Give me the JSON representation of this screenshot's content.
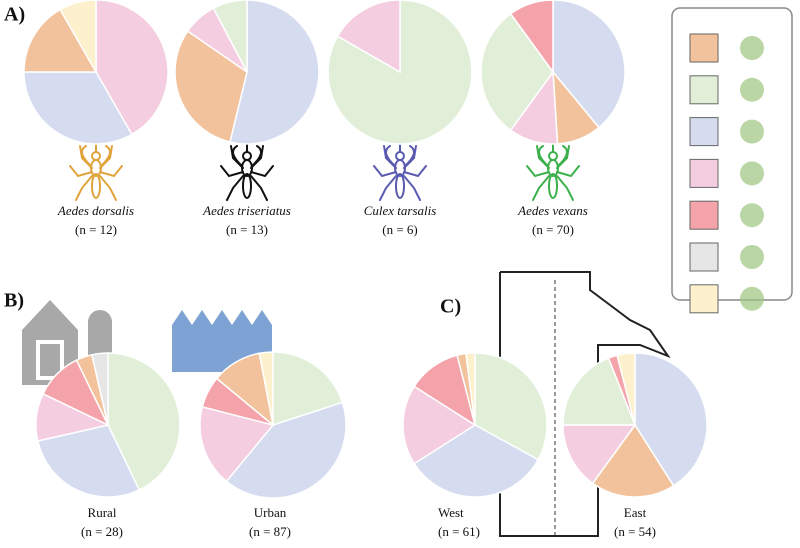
{
  "panel_labels": [
    "A)",
    "B)",
    "C)"
  ],
  "legend": {
    "colors": [
      "#f2c29c",
      "#e2efd8",
      "#d6dcf0",
      "#f4cde0",
      "#f4a3aa",
      "#e6e6e6",
      "#fdf0cc"
    ]
  },
  "chart_data": [
    {
      "type": "pie",
      "title": "Aedes dorsalis",
      "subtitle": "(n = 12)",
      "values": [
        41.7,
        33.3,
        16.7,
        8.3
      ],
      "colors": [
        "#f4cde0",
        "#d6dcf0",
        "#f2c29c",
        "#fdf0cc"
      ]
    },
    {
      "type": "pie",
      "title": "Aedes triseriatus",
      "subtitle": "(n = 13)",
      "values": [
        53.8,
        30.8,
        7.7,
        7.7
      ],
      "colors": [
        "#d6dcf0",
        "#f2c29c",
        "#f4cde0",
        "#e2efd8"
      ]
    },
    {
      "type": "pie",
      "title": "Culex tarsalis",
      "subtitle": "(n = 6)",
      "values": [
        83.3,
        16.7
      ],
      "colors": [
        "#e2efd8",
        "#f4cde0"
      ]
    },
    {
      "type": "pie",
      "title": "Aedes vexans",
      "subtitle": "(n = 70)",
      "values": [
        39,
        10,
        11,
        30,
        10
      ],
      "colors": [
        "#d6dcf0",
        "#f2c29c",
        "#f4cde0",
        "#e2efd8",
        "#f4a3aa"
      ]
    },
    {
      "type": "pie",
      "title": "Rural",
      "subtitle": "(n = 28)",
      "values": [
        42.9,
        28.6,
        10.7,
        10.7,
        3.6,
        3.6
      ],
      "colors": [
        "#e2efd8",
        "#d6dcf0",
        "#f4cde0",
        "#f4a3aa",
        "#f2c29c",
        "#e6e6e6"
      ]
    },
    {
      "type": "pie",
      "title": "Urban",
      "subtitle": "(n = 87)",
      "values": [
        20,
        41,
        18,
        7,
        11,
        3
      ],
      "colors": [
        "#e2efd8",
        "#d6dcf0",
        "#f4cde0",
        "#f4a3aa",
        "#f2c29c",
        "#fdf0cc"
      ]
    },
    {
      "type": "pie",
      "title": "West",
      "subtitle": "(n = 61)",
      "values": [
        33,
        33,
        18,
        12,
        2,
        2
      ],
      "colors": [
        "#e2efd8",
        "#d6dcf0",
        "#f4cde0",
        "#f4a3aa",
        "#f2c29c",
        "#fdf0cc"
      ]
    },
    {
      "type": "pie",
      "title": "East",
      "subtitle": "(n = 54)",
      "values": [
        41,
        19,
        15,
        19,
        2,
        4
      ],
      "colors": [
        "#d6dcf0",
        "#f2c29c",
        "#f4cde0",
        "#e2efd8",
        "#f4a3aa",
        "#fdf0cc"
      ]
    }
  ]
}
